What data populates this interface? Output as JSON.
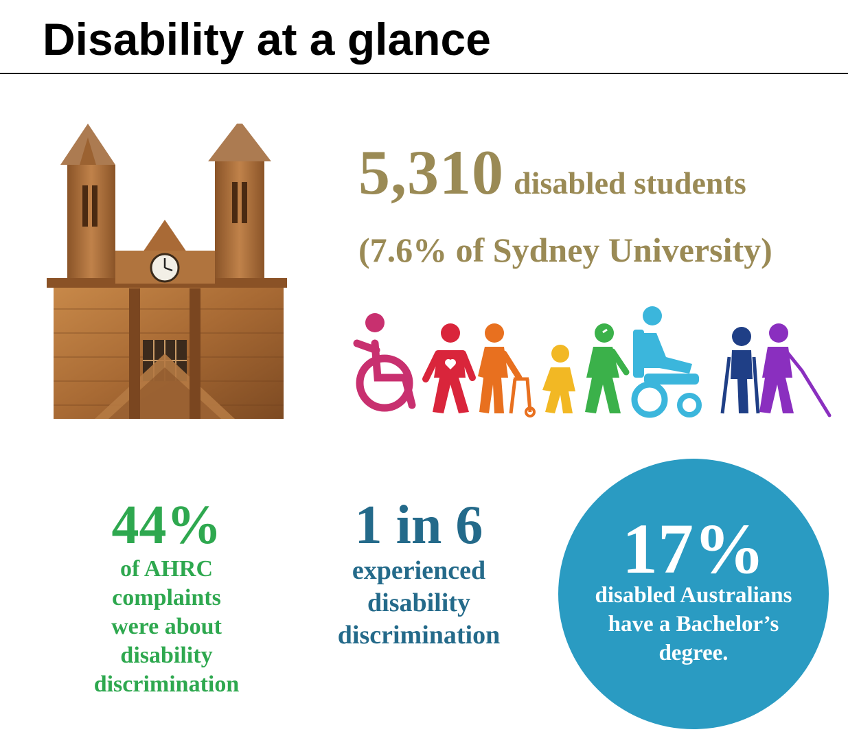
{
  "header": {
    "title": "Disability at a glance"
  },
  "main_stat": {
    "value": "5,310",
    "label": "disabled students",
    "subtext": "(7.6% of Sydney University)"
  },
  "stats": [
    {
      "value": "44%",
      "text": [
        "of AHRC",
        "complaints",
        "were about",
        "disability",
        "discrimination"
      ]
    },
    {
      "value": "1 in 6",
      "text": [
        "experienced",
        "disability",
        "discrimination"
      ]
    },
    {
      "value": "17%",
      "text": [
        "disabled Australians",
        "have a Bachelor’s",
        "degree."
      ]
    }
  ],
  "colors": {
    "gold": "#9a8a55",
    "green": "#2ea84f",
    "teal_text": "#246a8a",
    "circle": "#2a9bc2",
    "people": [
      "#c8306f",
      "#d9253b",
      "#e8701f",
      "#f2b824",
      "#3bb14a",
      "#3bb6dc",
      "#1f3f86",
      "#8a2fbf"
    ]
  },
  "images": {
    "tower": "sandstone-clock-tower-image",
    "people": "disability-figures-illustration"
  }
}
